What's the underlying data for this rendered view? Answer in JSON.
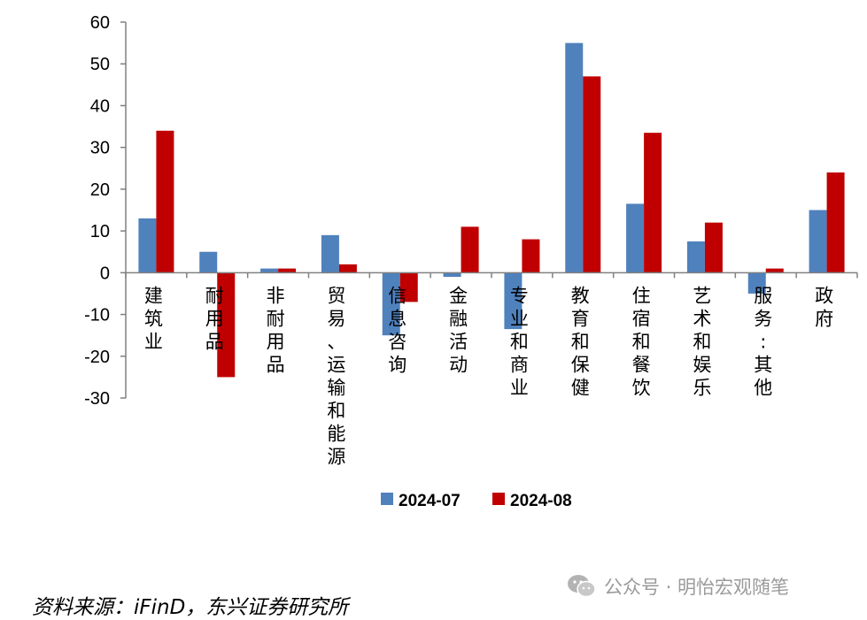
{
  "chart_data": {
    "type": "bar",
    "categories": [
      "建筑业",
      "耐用品",
      "非耐用品",
      "贸易、运输和能源",
      "信息咨询",
      "金融活动",
      "专业和商业",
      "教育和保健",
      "住宿和餐饮",
      "艺术和娱乐",
      "服务:其他",
      "政府"
    ],
    "category_lines": [
      [
        "建",
        "筑",
        "业"
      ],
      [
        "耐",
        "用",
        "品"
      ],
      [
        "非",
        "耐",
        "用",
        "品"
      ],
      [
        "贸",
        "易",
        "、",
        "运",
        "输",
        "和",
        "能",
        "源"
      ],
      [
        "信",
        "息",
        "咨",
        "询"
      ],
      [
        "金",
        "融",
        "活",
        "动"
      ],
      [
        "专",
        "业",
        "和",
        "商",
        "业"
      ],
      [
        "教",
        "育",
        "和",
        "保",
        "健"
      ],
      [
        "住",
        "宿",
        "和",
        "餐",
        "饮"
      ],
      [
        "艺",
        "术",
        "和",
        "娱",
        "乐"
      ],
      [
        "服",
        "务",
        ":",
        "其",
        "他"
      ],
      [
        "政",
        "府"
      ]
    ],
    "series": [
      {
        "name": "2024-07",
        "color": "#4F81BD",
        "values": [
          13,
          5,
          1,
          9,
          -15,
          -1,
          -13.5,
          55,
          16.5,
          7.5,
          -5,
          15
        ]
      },
      {
        "name": "2024-08",
        "color": "#C00000",
        "values": [
          34,
          -25,
          1,
          2,
          -7,
          11,
          8,
          47,
          33.5,
          12,
          1,
          24
        ]
      }
    ],
    "ylim": [
      -30,
      60
    ],
    "yticks": [
      60,
      50,
      40,
      30,
      20,
      10,
      0,
      -10,
      -20,
      -30
    ],
    "legend_position": "bottom",
    "grid": false
  },
  "source_text": "资料来源：iFinD，东兴证券研究所",
  "watermark": {
    "icon": "wechat-icon",
    "text": "公众号 · 明怡宏观随笔"
  }
}
